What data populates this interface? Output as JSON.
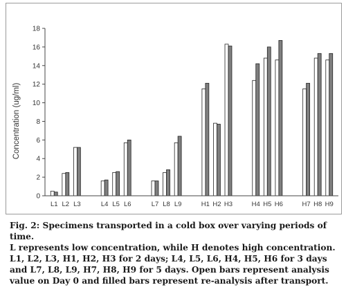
{
  "chart_data": {
    "type": "bar",
    "title": "",
    "xlabel": "",
    "ylabel": "Concentration (ug/ml)",
    "ylim": [
      0,
      18
    ],
    "yticks": [
      "0",
      "2",
      "4",
      "6",
      "8",
      "10",
      "12",
      "14",
      "16",
      "18"
    ],
    "grid": false,
    "legend": "none",
    "categories": [
      "L1",
      "L2",
      "L3",
      "L4",
      "L5",
      "L6",
      "L7",
      "L8",
      "L9",
      "H1",
      "H2",
      "H3",
      "H4",
      "H5",
      "H6",
      "H7",
      "H8",
      "H9"
    ],
    "groups": [
      3,
      3,
      3,
      3,
      3,
      3
    ],
    "series": [
      {
        "kind": "open",
        "color": "#ffffff",
        "values": [
          0.5,
          2.4,
          5.2,
          1.6,
          2.5,
          5.7,
          1.6,
          2.5,
          5.7,
          11.5,
          7.8,
          16.3,
          12.4,
          14.8,
          14.6,
          11.5,
          14.8,
          14.6
        ]
      },
      {
        "kind": "filled",
        "color": "#7f7f7f",
        "values": [
          0.4,
          2.5,
          5.2,
          1.7,
          2.6,
          6.0,
          1.6,
          2.8,
          6.4,
          12.1,
          7.7,
          16.1,
          14.2,
          16.0,
          16.7,
          12.1,
          15.3,
          15.3
        ]
      }
    ]
  },
  "caption": {
    "title_line": "Fig. 2: Specimens transported in a cold box over varying periods of time.",
    "body": "L represents low concentration, while H denotes high concentration. L1, L2, L3, H1, H2, H3 for 2 days; L4, L5, L6, H4, H5, H6 for 3 days and L7, L8, L9, H7, H8, H9 for 5 days. Open bars represent analysis value on Day 0 and filled bars represent re-analysis after transport."
  }
}
